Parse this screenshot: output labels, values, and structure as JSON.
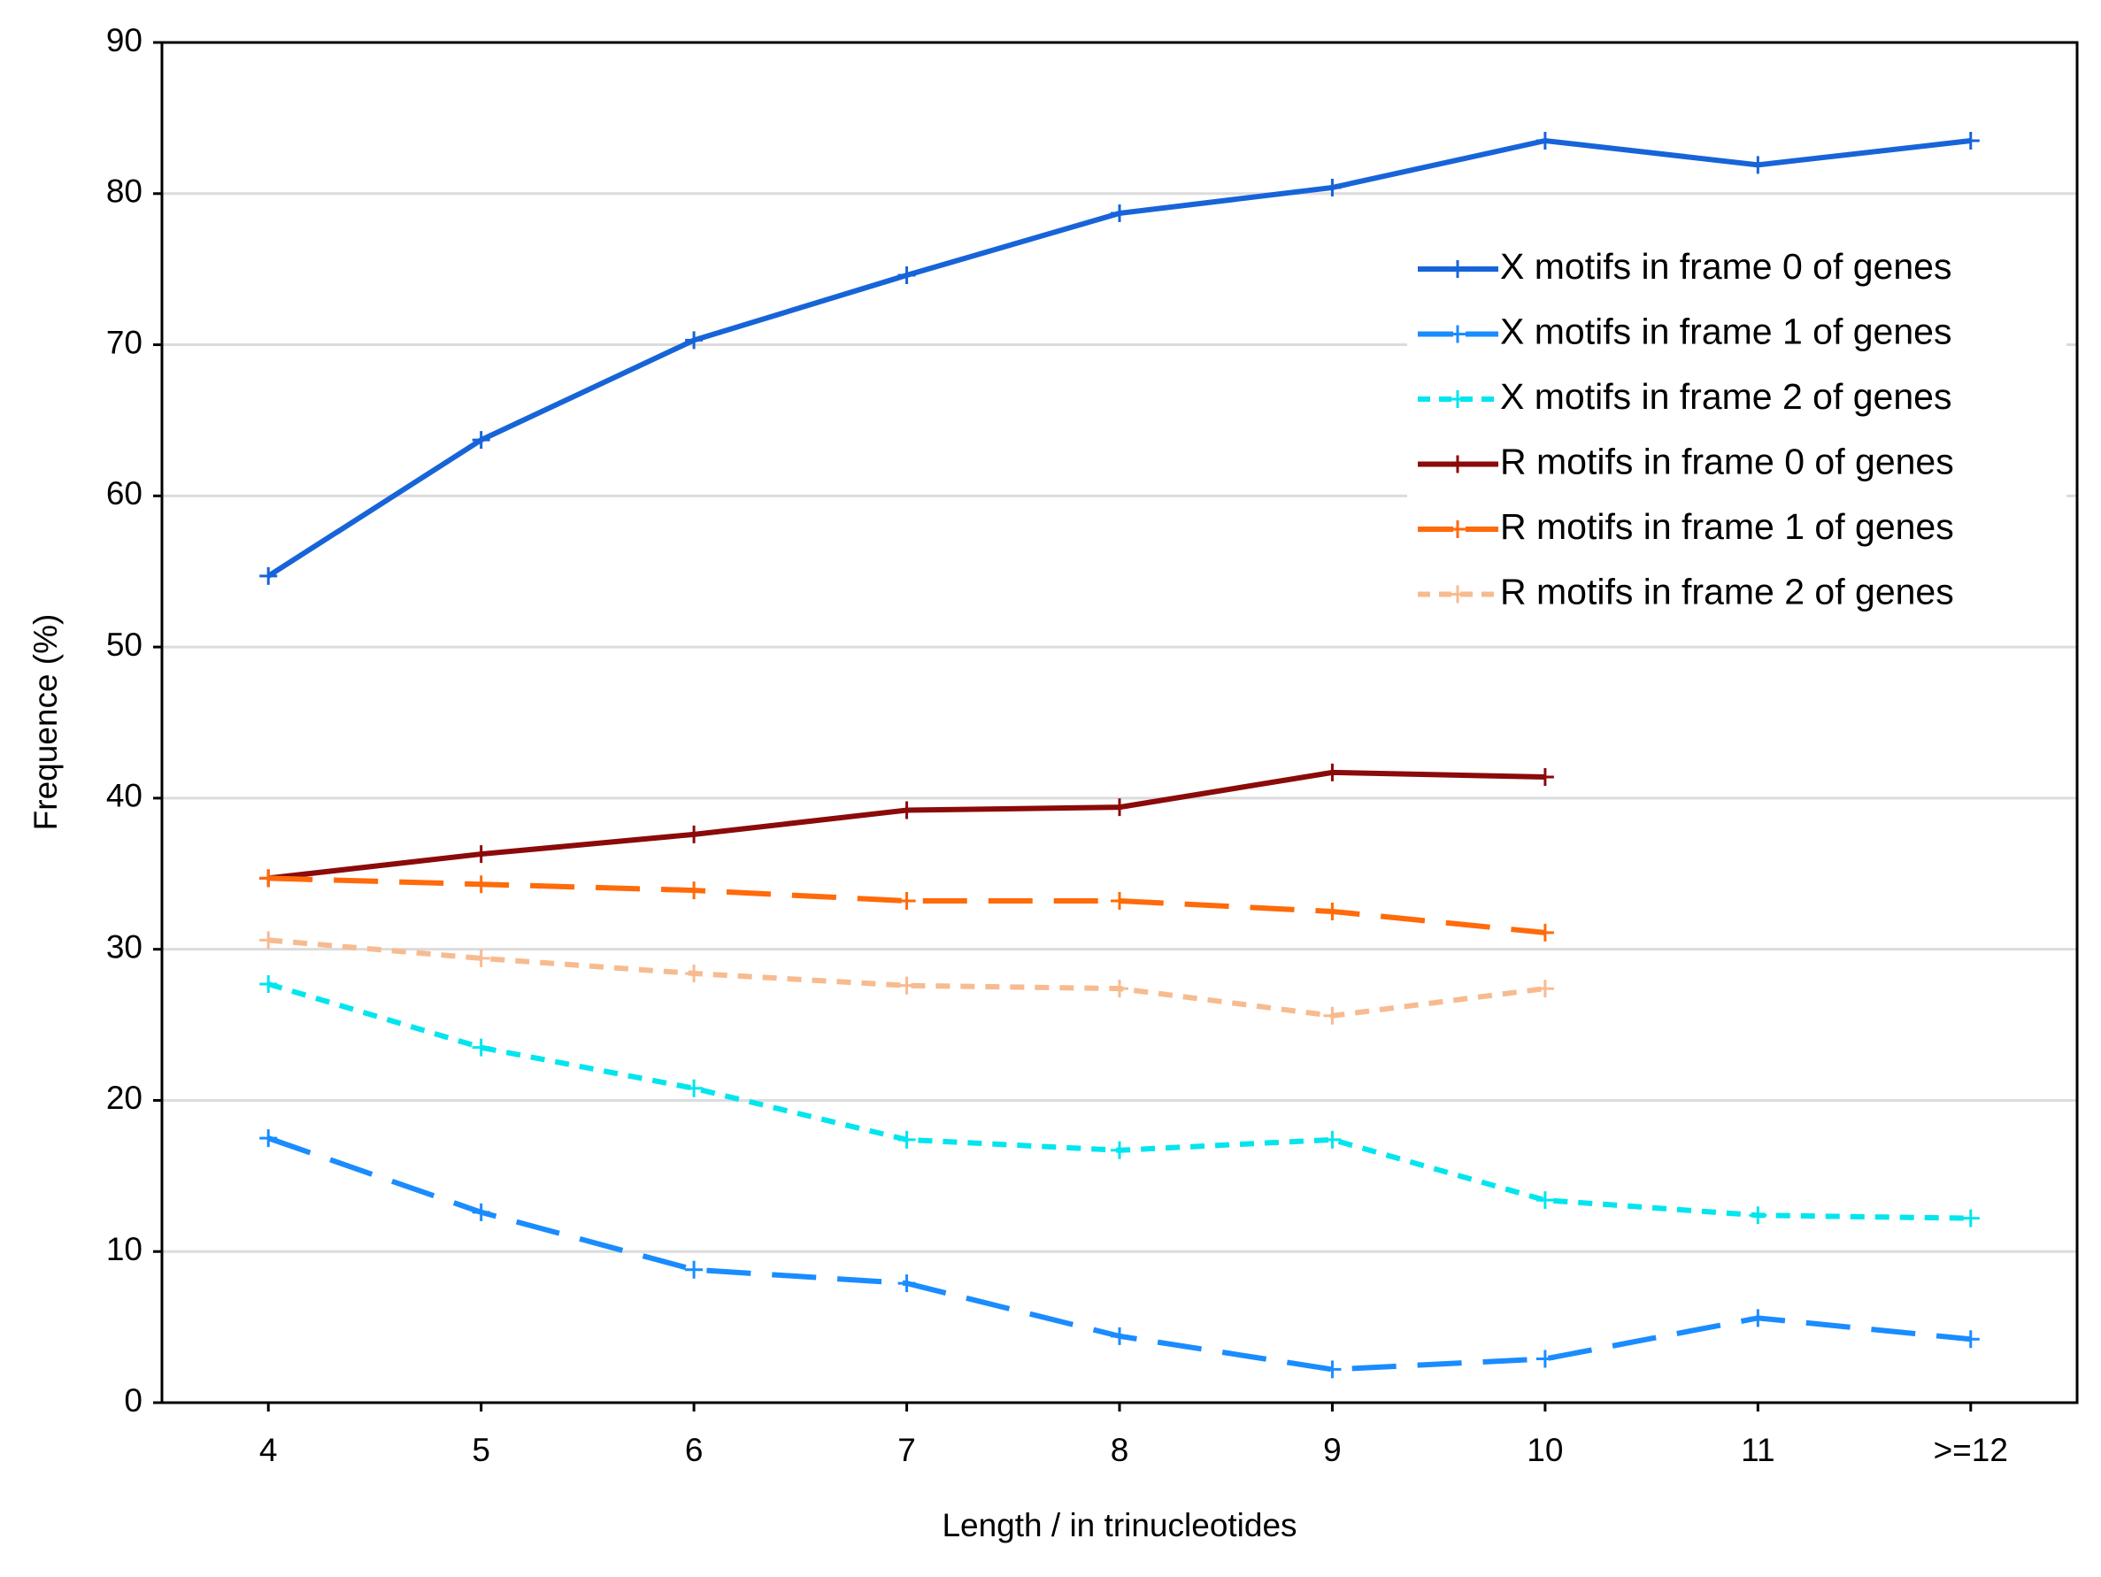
{
  "chart_data": {
    "type": "line",
    "x_label": "Length / in trinucleotides",
    "y_label": "Frequence (%)",
    "categories": [
      "4",
      "5",
      "6",
      "7",
      "8",
      "9",
      "10",
      "11",
      ">=12"
    ],
    "ylim": [
      0,
      90
    ],
    "yticks": [
      0,
      10,
      20,
      30,
      40,
      50,
      60,
      70,
      80,
      90
    ],
    "grid": true,
    "legend": "upper right",
    "series": [
      {
        "name": "X motifs in frame 0 of genes",
        "color": "#1764d9",
        "dash": "solid",
        "values": [
          54.7,
          63.7,
          70.3,
          74.6,
          78.7,
          80.4,
          83.5,
          81.9,
          83.5
        ]
      },
      {
        "name": "X motifs in frame 1 of genes",
        "color": "#1a8cff",
        "dash": "long",
        "values": [
          17.5,
          12.6,
          8.8,
          7.9,
          4.4,
          2.2,
          2.9,
          5.6,
          4.2
        ]
      },
      {
        "name": "X motifs in frame 2 of genes",
        "color": "#00e5ee",
        "dash": "short",
        "values": [
          27.7,
          23.5,
          20.8,
          17.4,
          16.7,
          17.4,
          13.4,
          12.4,
          12.2
        ]
      },
      {
        "name": "R motifs in frame 0 of genes",
        "color": "#8b0a0a",
        "dash": "solid",
        "values": [
          34.7,
          36.3,
          37.6,
          39.2,
          39.4,
          41.7,
          41.4,
          null,
          null
        ]
      },
      {
        "name": "R motifs in frame 1 of genes",
        "color": "#ff6a0a",
        "dash": "long",
        "values": [
          34.7,
          34.3,
          33.9,
          33.2,
          33.2,
          32.5,
          31.1,
          null,
          null
        ]
      },
      {
        "name": "R motifs in frame 2 of genes",
        "color": "#f7bb90",
        "dash": "short",
        "values": [
          30.6,
          29.4,
          28.4,
          27.6,
          27.4,
          25.6,
          27.4,
          null,
          null
        ]
      }
    ]
  }
}
